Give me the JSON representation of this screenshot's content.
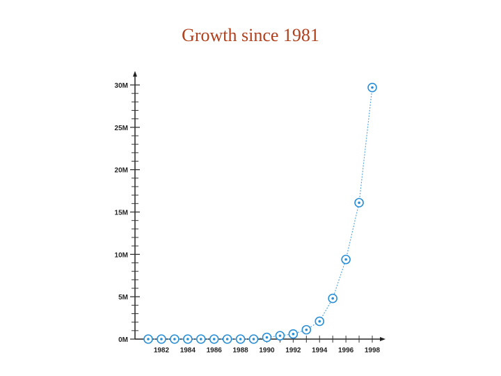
{
  "title": "Growth since 1981",
  "chart_data": {
    "type": "scatter",
    "title": "Growth since 1981",
    "xlabel": "",
    "ylabel": "",
    "x": [
      1981,
      1982,
      1983,
      1984,
      1985,
      1986,
      1987,
      1988,
      1989,
      1990,
      1991,
      1992,
      1993,
      1994,
      1995,
      1996,
      1997,
      1998
    ],
    "y": [
      0,
      0,
      0,
      0,
      0,
      0,
      0,
      0,
      0,
      0.2,
      0.4,
      0.6,
      1.1,
      2.1,
      4.8,
      9.4,
      16.1,
      29.7
    ],
    "y_unit": "M",
    "xlim": [
      1981,
      1998
    ],
    "ylim": [
      0,
      30
    ],
    "y_ticks": [
      "0M",
      "5M",
      "10M",
      "15M",
      "20M",
      "25M",
      "30M"
    ],
    "y_tick_values": [
      0,
      5,
      10,
      15,
      20,
      25,
      30
    ],
    "x_ticks": [
      "1982",
      "1984",
      "1986",
      "1988",
      "1990",
      "1992",
      "1994",
      "1996",
      "1998"
    ],
    "x_tick_values": [
      1982,
      1984,
      1986,
      1988,
      1990,
      1992,
      1994,
      1996,
      1998
    ],
    "marker_color": "#2a8fd6",
    "line_color": "#5aa8e0",
    "line_style": "dotted",
    "grid": false
  }
}
